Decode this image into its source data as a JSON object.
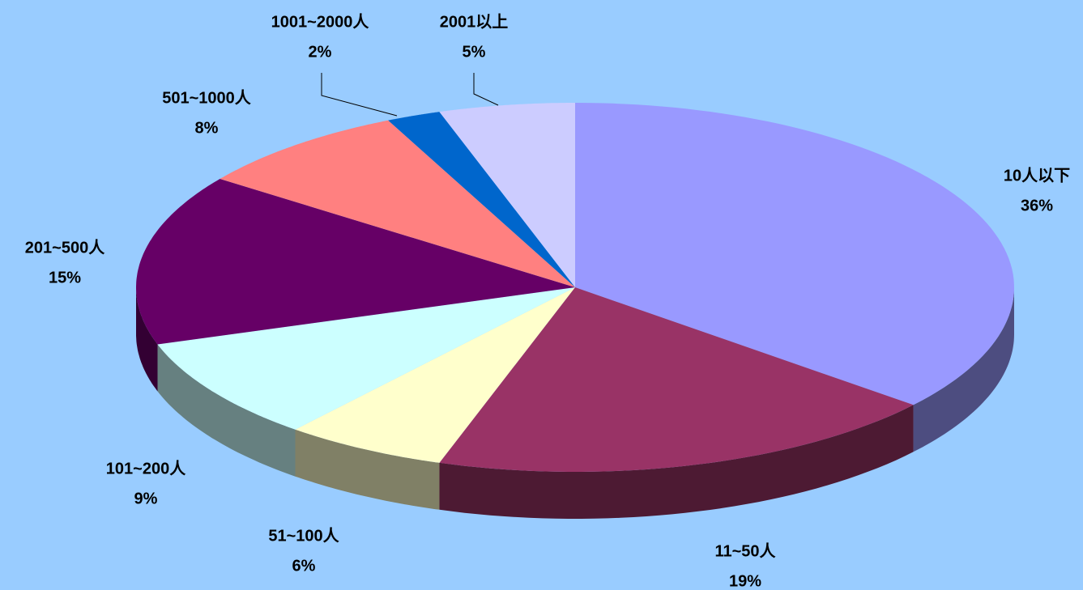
{
  "chart_data": {
    "type": "pie",
    "categories": [
      "10人以下",
      "11~50人",
      "51~100人",
      "101~200人",
      "201~500人",
      "501~1000人",
      "1001~2000人",
      "2001以上"
    ],
    "values": [
      36,
      19,
      6,
      9,
      15,
      8,
      2,
      5
    ],
    "value_labels": [
      "36%",
      "19%",
      "6%",
      "9%",
      "15%",
      "8%",
      "2%",
      "5%"
    ],
    "colors": [
      "#9999ff",
      "#993366",
      "#ffffcc",
      "#ccffff",
      "#660066",
      "#ff8080",
      "#0066cc",
      "#ccccff"
    ]
  }
}
